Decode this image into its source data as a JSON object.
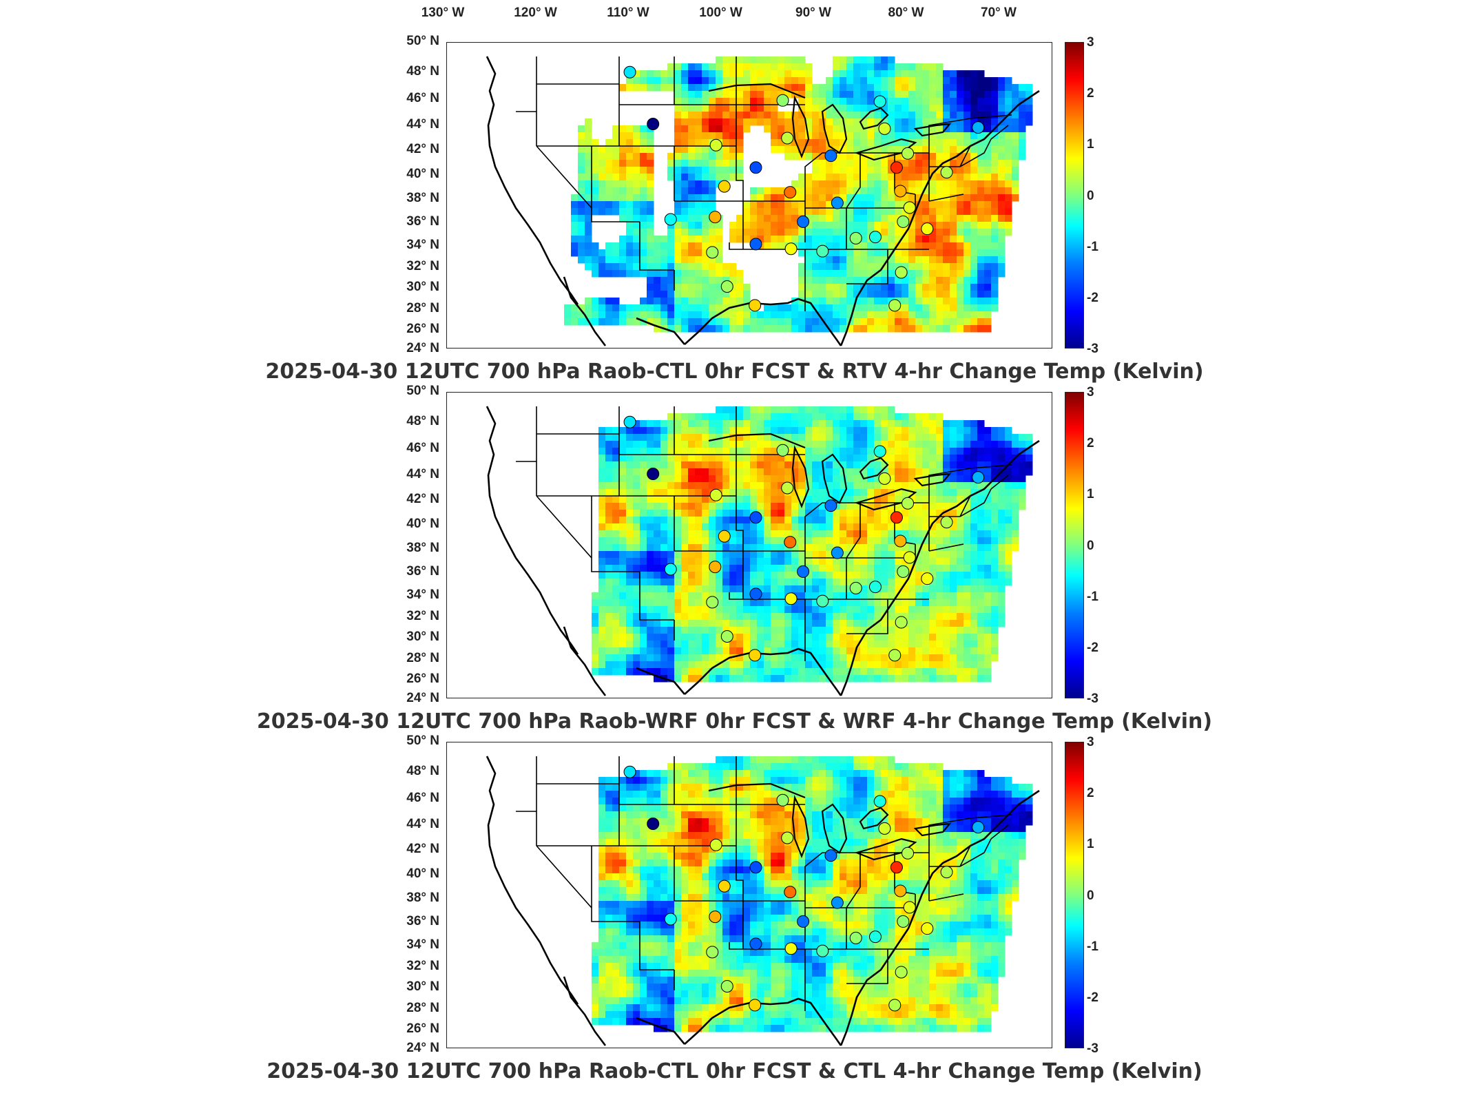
{
  "map": {
    "lon_ticks": [
      "130° W",
      "120° W",
      "110° W",
      "100° W",
      "90° W",
      "80° W",
      "70° W"
    ],
    "lat_ticks": [
      "50° N",
      "48° N",
      "46° N",
      "44° N",
      "42° N",
      "40° N",
      "38° N",
      "36° N",
      "34° N",
      "32° N",
      "30° N",
      "28° N",
      "26° N",
      "24° N"
    ],
    "colorbar": {
      "ticks": [
        "3",
        "2",
        "1",
        "0",
        "-1",
        "-2",
        "-3"
      ],
      "range": [
        -3,
        3
      ],
      "colormap": "jet",
      "colors": [
        "#00008f",
        "#0000ff",
        "#0080ff",
        "#00ffff",
        "#80ff80",
        "#ffff00",
        "#ff8000",
        "#ff0000",
        "#800000"
      ]
    }
  },
  "panels": [
    {
      "title": "2025-04-30 12UTC 700 hPa Raob-CTL 0hr FCST & RTV 4-hr Change Temp (Kelvin)"
    },
    {
      "title": "2025-04-30 12UTC 700 hPa Raob-WRF 0hr FCST & WRF 4-hr Change Temp (Kelvin)"
    },
    {
      "title": "2025-04-30 12UTC 700 hPa Raob-CTL 0hr FCST & CTL 4-hr Change Temp (Kelvin)"
    }
  ],
  "raob_stations": [
    {
      "lon": -111.0,
      "lat": 47.5,
      "v": -0.9
    },
    {
      "lon": -108.5,
      "lat": 43.1,
      "v": -3.0
    },
    {
      "lon": -101.7,
      "lat": 41.3,
      "v": 0.5
    },
    {
      "lon": -100.8,
      "lat": 37.8,
      "v": 1.0
    },
    {
      "lon": -97.4,
      "lat": 39.4,
      "v": -1.8
    },
    {
      "lon": -94.5,
      "lat": 45.1,
      "v": 0.1
    },
    {
      "lon": -93.7,
      "lat": 37.3,
      "v": 1.6
    },
    {
      "lon": -94.0,
      "lat": 41.9,
      "v": 0.4
    },
    {
      "lon": -89.3,
      "lat": 40.4,
      "v": -1.6
    },
    {
      "lon": -84.0,
      "lat": 45.0,
      "v": -0.6
    },
    {
      "lon": -83.5,
      "lat": 42.7,
      "v": 0.5
    },
    {
      "lon": -82.2,
      "lat": 39.4,
      "v": 2.0
    },
    {
      "lon": -81.0,
      "lat": 40.6,
      "v": 0.3
    },
    {
      "lon": -81.8,
      "lat": 37.4,
      "v": 1.2
    },
    {
      "lon": -80.8,
      "lat": 36.0,
      "v": 0.6
    },
    {
      "lon": -76.8,
      "lat": 39.0,
      "v": 0.3
    },
    {
      "lon": -73.4,
      "lat": 42.8,
      "v": -1.2
    },
    {
      "lon": -88.6,
      "lat": 36.4,
      "v": -1.4
    },
    {
      "lon": -86.6,
      "lat": 33.4,
      "v": 0.1
    },
    {
      "lon": -84.5,
      "lat": 33.5,
      "v": -0.6
    },
    {
      "lon": -81.5,
      "lat": 34.8,
      "v": 0.1
    },
    {
      "lon": -78.9,
      "lat": 34.2,
      "v": 0.7
    },
    {
      "lon": -90.2,
      "lat": 32.3,
      "v": -0.3
    },
    {
      "lon": -93.6,
      "lat": 32.5,
      "v": 0.7
    },
    {
      "lon": -92.3,
      "lat": 34.8,
      "v": -1.6
    },
    {
      "lon": -97.4,
      "lat": 32.9,
      "v": -1.7
    },
    {
      "lon": -101.8,
      "lat": 35.2,
      "v": 1.2
    },
    {
      "lon": -106.6,
      "lat": 35.0,
      "v": -0.7
    },
    {
      "lon": -102.1,
      "lat": 32.2,
      "v": 0.2
    },
    {
      "lon": -100.5,
      "lat": 29.3,
      "v": 0.2
    },
    {
      "lon": -97.5,
      "lat": 27.7,
      "v": 1.0
    },
    {
      "lon": -81.7,
      "lat": 30.5,
      "v": 0.3
    },
    {
      "lon": -82.4,
      "lat": 27.7,
      "v": 0.3
    }
  ]
}
